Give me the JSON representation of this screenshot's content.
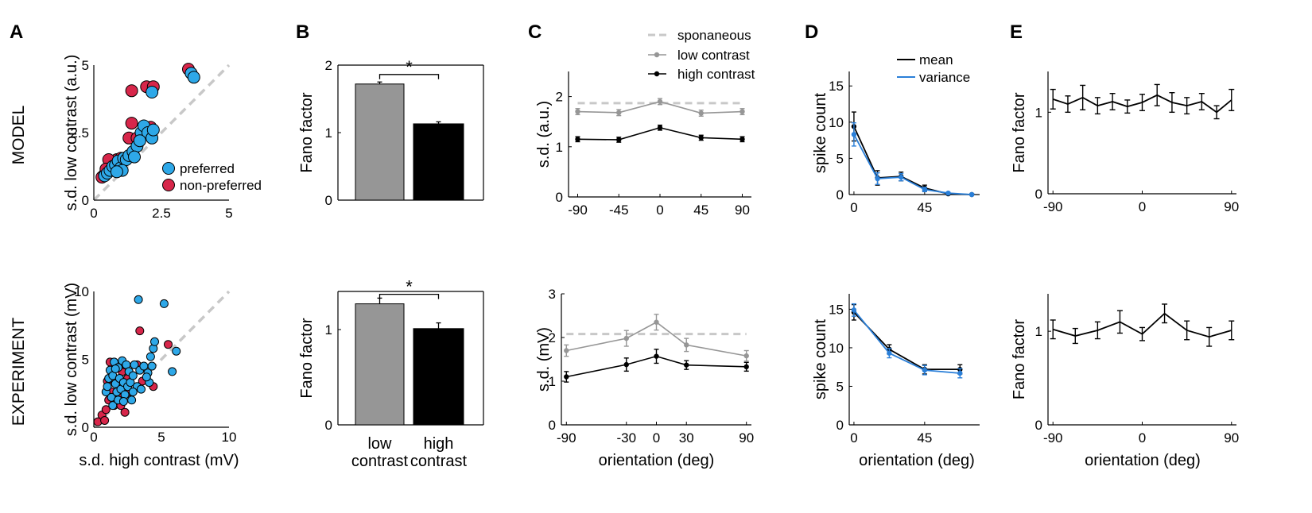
{
  "row_labels": {
    "top": "MODEL",
    "bottom": "EXPERIMENT"
  },
  "panel_letters": [
    "A",
    "B",
    "C",
    "D",
    "E"
  ],
  "colors": {
    "blue": "#2ea8e8",
    "red": "#d7264a",
    "gray": "#969696",
    "black": "#000000",
    "light_gray": "#c8c8c8",
    "variance_blue": "#2a7fd8"
  },
  "chart_data": [
    {
      "id": "A-model",
      "type": "scatter",
      "xlabel": "",
      "ylabel": "s.d. low contrast (a.u.)",
      "xlim": [
        0,
        5
      ],
      "ylim": [
        0,
        5
      ],
      "xticks": [
        "0",
        "2.5",
        "5"
      ],
      "yticks": [
        "0",
        "2.5",
        "5"
      ],
      "legend": [
        "preferred",
        "non-preferred"
      ],
      "legend_position": "bottom-right",
      "identity_line": true,
      "series": [
        {
          "name": "non-preferred",
          "points": [
            [
              0.3,
              0.85
            ],
            [
              0.4,
              0.95
            ],
            [
              0.5,
              1.05
            ],
            [
              0.6,
              1.2
            ],
            [
              0.7,
              1.35
            ],
            [
              0.85,
              1.5
            ],
            [
              1.0,
              1.55
            ],
            [
              1.3,
              2.3
            ],
            [
              1.4,
              2.85
            ],
            [
              1.6,
              2.3
            ],
            [
              1.9,
              2.45
            ],
            [
              2.1,
              2.7
            ],
            [
              1.95,
              4.2
            ],
            [
              2.2,
              4.2
            ],
            [
              1.4,
              4.05
            ],
            [
              3.5,
              4.85
            ],
            [
              0.55,
              1.5
            ],
            [
              0.45,
              1.15
            ]
          ]
        },
        {
          "name": "preferred",
          "points": [
            [
              0.4,
              0.9
            ],
            [
              0.5,
              1.0
            ],
            [
              0.6,
              1.1
            ],
            [
              0.7,
              1.25
            ],
            [
              0.8,
              1.3
            ],
            [
              0.9,
              1.45
            ],
            [
              1.0,
              1.2
            ],
            [
              1.1,
              1.55
            ],
            [
              1.2,
              1.5
            ],
            [
              1.3,
              1.65
            ],
            [
              1.45,
              1.8
            ],
            [
              1.6,
              2.0
            ],
            [
              1.75,
              2.5
            ],
            [
              1.85,
              2.75
            ],
            [
              2.0,
              2.5
            ],
            [
              2.15,
              2.3
            ],
            [
              2.2,
              2.6
            ],
            [
              1.7,
              2.2
            ],
            [
              2.15,
              4.0
            ],
            [
              3.6,
              4.7
            ],
            [
              3.7,
              4.55
            ],
            [
              1.5,
              1.6
            ],
            [
              1.05,
              1.1
            ],
            [
              0.85,
              1.05
            ]
          ]
        }
      ]
    },
    {
      "id": "B-model",
      "type": "bar",
      "ylabel": "Fano factor",
      "ylim": [
        0,
        2
      ],
      "yticks": [
        "0",
        "1",
        "2"
      ],
      "categories": [
        "low contrast",
        "high contrast"
      ],
      "values": [
        1.72,
        1.13
      ],
      "errors": [
        0.03,
        0.03
      ],
      "significance": "*"
    },
    {
      "id": "C-model",
      "type": "line",
      "ylabel": "s.d. (a.u.)",
      "xlabel": "",
      "xlim": [
        -100,
        100
      ],
      "ylim": [
        0,
        2.5
      ],
      "xticks": [
        "-90",
        "-45",
        "0",
        "45",
        "90"
      ],
      "yticks": [
        "0",
        "1",
        "2"
      ],
      "legend": [
        "sponaneous",
        "low contrast",
        "high contrast"
      ],
      "legend_position": "top-right",
      "x": [
        -90,
        -45,
        0,
        45,
        90
      ],
      "series": [
        {
          "name": "sponaneous",
          "style": "dashed",
          "values": [
            1.87,
            1.87,
            1.87,
            1.87,
            1.87
          ]
        },
        {
          "name": "low contrast",
          "values": [
            1.7,
            1.68,
            1.9,
            1.67,
            1.7
          ],
          "errors": [
            0.06,
            0.06,
            0.06,
            0.06,
            0.06
          ]
        },
        {
          "name": "high contrast",
          "values": [
            1.15,
            1.14,
            1.38,
            1.18,
            1.15
          ],
          "errors": [
            0.05,
            0.05,
            0.05,
            0.05,
            0.05
          ]
        }
      ]
    },
    {
      "id": "D-model",
      "type": "line",
      "ylabel": "spike count",
      "xlabel": "",
      "xlim": [
        -3,
        80
      ],
      "ylim": [
        0,
        17
      ],
      "xticks": [
        "0",
        "45"
      ],
      "yticks": [
        "0",
        "5",
        "10",
        "15"
      ],
      "legend": [
        "mean",
        "variance"
      ],
      "legend_position": "top-right",
      "x": [
        0,
        15,
        30,
        45,
        60,
        75
      ],
      "series": [
        {
          "name": "mean",
          "values": [
            9.4,
            2.3,
            2.5,
            0.9,
            0.1,
            0.0
          ],
          "errors": [
            2.0,
            1.0,
            0.6,
            0.4,
            0.1,
            0.1
          ]
        },
        {
          "name": "variance",
          "values": [
            8.3,
            2.2,
            2.4,
            0.7,
            0.2,
            0.0
          ],
          "errors": [
            1.6,
            0.8,
            0.5,
            0.3,
            0.1,
            0.1
          ]
        }
      ]
    },
    {
      "id": "E-model",
      "type": "line",
      "ylabel": "Fano factor",
      "xlabel": "",
      "xlim": [
        -95,
        95
      ],
      "ylim": [
        0,
        1.5
      ],
      "xticks": [
        "-90",
        "0",
        "90"
      ],
      "yticks": [
        "0",
        "1"
      ],
      "x": [
        -90,
        -75,
        -60,
        -45,
        -30,
        -15,
        0,
        15,
        30,
        45,
        60,
        75,
        90
      ],
      "series": [
        {
          "name": "",
          "values": [
            1.16,
            1.1,
            1.18,
            1.08,
            1.13,
            1.07,
            1.12,
            1.21,
            1.12,
            1.08,
            1.13,
            1.0,
            1.15
          ],
          "errors": [
            0.12,
            0.1,
            0.15,
            0.1,
            0.1,
            0.08,
            0.1,
            0.13,
            0.12,
            0.1,
            0.1,
            0.08,
            0.13
          ]
        }
      ]
    },
    {
      "id": "A-exp",
      "type": "scatter",
      "xlabel": "s.d. high contrast (mV)",
      "ylabel": "s.d. low contrast (mV)",
      "xlim": [
        0,
        10
      ],
      "ylim": [
        0,
        10
      ],
      "xticks": [
        "0",
        "5",
        "10"
      ],
      "yticks": [
        "0",
        "5",
        "10"
      ],
      "identity_line": true,
      "series": [
        {
          "name": "non-preferred",
          "points": [
            [
              0.3,
              0.4
            ],
            [
              0.6,
              0.9
            ],
            [
              0.9,
              1.3
            ],
            [
              1.1,
              2.0
            ],
            [
              1.3,
              2.6
            ],
            [
              1.5,
              1.6
            ],
            [
              1.7,
              3.2
            ],
            [
              1.9,
              2.2
            ],
            [
              2.1,
              4.1
            ],
            [
              2.3,
              4.6
            ],
            [
              2.0,
              1.6
            ],
            [
              2.6,
              2.6
            ],
            [
              3.2,
              4.6
            ],
            [
              3.4,
              7.1
            ],
            [
              2.5,
              3.6
            ],
            [
              1.2,
              4.8
            ],
            [
              1.0,
              3.4
            ],
            [
              4.4,
              3.0
            ],
            [
              3.6,
              3.4
            ],
            [
              5.5,
              6.1
            ],
            [
              2.3,
              1.1
            ],
            [
              0.8,
              0.5
            ]
          ]
        },
        {
          "name": "preferred",
          "points": [
            [
              0.9,
              2.6
            ],
            [
              1.0,
              3.0
            ],
            [
              1.1,
              3.6
            ],
            [
              1.2,
              4.2
            ],
            [
              1.3,
              2.2
            ],
            [
              1.4,
              3.8
            ],
            [
              1.5,
              4.8
            ],
            [
              1.6,
              3.2
            ],
            [
              1.7,
              2.6
            ],
            [
              1.8,
              4.4
            ],
            [
              1.9,
              3.6
            ],
            [
              2.0,
              2.8
            ],
            [
              2.1,
              4.9
            ],
            [
              2.2,
              3.3
            ],
            [
              2.3,
              2.4
            ],
            [
              2.4,
              4.6
            ],
            [
              2.5,
              3.0
            ],
            [
              2.6,
              4.1
            ],
            [
              2.7,
              3.3
            ],
            [
              2.8,
              2.0
            ],
            [
              2.9,
              3.8
            ],
            [
              3.0,
              4.6
            ],
            [
              3.2,
              3.0
            ],
            [
              3.4,
              4.2
            ],
            [
              3.5,
              2.8
            ],
            [
              3.7,
              4.5
            ],
            [
              4.0,
              4.0
            ],
            [
              4.2,
              5.2
            ],
            [
              4.3,
              4.5
            ],
            [
              4.4,
              5.8
            ],
            [
              4.5,
              6.3
            ],
            [
              4.1,
              3.3
            ],
            [
              3.3,
              9.4
            ],
            [
              5.2,
              9.1
            ],
            [
              6.1,
              5.6
            ],
            [
              5.8,
              4.1
            ],
            [
              1.4,
              1.6
            ],
            [
              1.8,
              2.0
            ],
            [
              2.2,
              1.9
            ],
            [
              1.6,
              4.3
            ],
            [
              2.9,
              2.6
            ],
            [
              3.9,
              3.7
            ]
          ]
        }
      ]
    },
    {
      "id": "B-exp",
      "type": "bar",
      "ylabel": "Fano factor",
      "ylim": [
        0,
        1.4
      ],
      "yticks": [
        "0",
        "1"
      ],
      "categories": [
        "low contrast",
        "high contrast"
      ],
      "category_lines": [
        [
          "low",
          "contrast"
        ],
        [
          "high",
          "contrast"
        ]
      ],
      "values": [
        1.27,
        1.01
      ],
      "errors": [
        0.06,
        0.06
      ],
      "significance": "*"
    },
    {
      "id": "C-exp",
      "type": "line",
      "ylabel": "s.d. (mV)",
      "xlabel": "orientation (deg)",
      "xlim": [
        -95,
        95
      ],
      "ylim": [
        0,
        3
      ],
      "xticks": [
        "-90",
        "-30",
        "0",
        "30",
        "90"
      ],
      "yticks": [
        "0",
        "1",
        "2",
        "3"
      ],
      "x": [
        -90,
        -30,
        0,
        30,
        90
      ],
      "series": [
        {
          "name": "sponaneous",
          "style": "dashed",
          "values": [
            2.08,
            2.08,
            2.08,
            2.08,
            2.08
          ]
        },
        {
          "name": "low contrast",
          "values": [
            1.7,
            1.98,
            2.35,
            1.83,
            1.58
          ],
          "errors": [
            0.13,
            0.18,
            0.18,
            0.15,
            0.12
          ]
        },
        {
          "name": "high contrast",
          "values": [
            1.1,
            1.38,
            1.57,
            1.37,
            1.33
          ],
          "errors": [
            0.12,
            0.15,
            0.16,
            0.1,
            0.1
          ]
        }
      ]
    },
    {
      "id": "D-exp",
      "type": "line",
      "ylabel": "spike count",
      "xlabel": "orientation (deg)",
      "xlim": [
        -3,
        80
      ],
      "ylim": [
        0,
        17
      ],
      "xticks": [
        "0",
        "45"
      ],
      "yticks": [
        "0",
        "5",
        "10",
        "15"
      ],
      "x": [
        0,
        22.5,
        45,
        67.5
      ],
      "series": [
        {
          "name": "mean",
          "values": [
            14.6,
            9.8,
            7.2,
            7.2
          ],
          "errors": [
            1.0,
            0.6,
            0.6,
            0.6
          ]
        },
        {
          "name": "variance",
          "values": [
            14.9,
            9.3,
            7.1,
            6.7
          ],
          "errors": [
            0.8,
            0.6,
            0.6,
            0.6
          ]
        }
      ]
    },
    {
      "id": "E-exp",
      "type": "line",
      "ylabel": "Fano factor",
      "xlabel": "orientation (deg)",
      "xlim": [
        -95,
        95
      ],
      "ylim": [
        0,
        1.4
      ],
      "xticks": [
        "-90",
        "0",
        "90"
      ],
      "yticks": [
        "0",
        "1"
      ],
      "x": [
        -90,
        -67.5,
        -45,
        -22.5,
        0,
        22.5,
        45,
        67.5,
        90
      ],
      "series": [
        {
          "name": "",
          "values": [
            1.02,
            0.95,
            1.01,
            1.1,
            0.97,
            1.19,
            1.01,
            0.94,
            1.01
          ],
          "errors": [
            0.1,
            0.08,
            0.09,
            0.12,
            0.07,
            0.1,
            0.1,
            0.1,
            0.1
          ]
        }
      ]
    }
  ]
}
